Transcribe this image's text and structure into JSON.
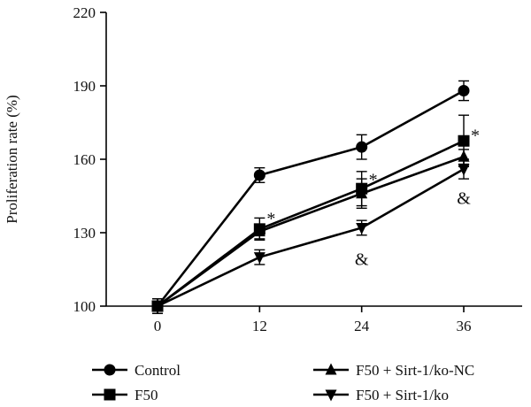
{
  "chart_data": {
    "type": "line",
    "title": "",
    "xlabel": "",
    "ylabel": "Proliferation rate (%)",
    "x": [
      0,
      12,
      24,
      36
    ],
    "x_ticks": [
      "0",
      "12",
      "24",
      "36"
    ],
    "ylim": [
      100,
      220
    ],
    "y_ticks": [
      "100",
      "130",
      "160",
      "190",
      "220"
    ],
    "grid": false,
    "legend_position": "bottom",
    "series": [
      {
        "name": "Control",
        "marker": "circle",
        "values": [
          100,
          153.5,
          165,
          188
        ],
        "errors": [
          3,
          3,
          5,
          4
        ]
      },
      {
        "name": "F50",
        "marker": "square",
        "values": [
          100,
          131.5,
          148,
          167.5
        ],
        "errors": [
          3,
          4.5,
          7,
          10.5
        ]
      },
      {
        "name": "F50 + Sirt-1/ko-NC",
        "marker": "triangle-up",
        "values": [
          100,
          130.5,
          146,
          161
        ],
        "errors": [
          3,
          3,
          6,
          3
        ]
      },
      {
        "name": "F50 + Sirt-1/ko",
        "marker": "triangle-down",
        "values": [
          100,
          120,
          132,
          156
        ],
        "errors": [
          3,
          3,
          3,
          4
        ]
      }
    ],
    "annotations": [
      {
        "text": "*",
        "x": 12,
        "y": 137
      },
      {
        "text": "*",
        "x": 24,
        "y": 153
      },
      {
        "text": "*",
        "x": 36,
        "y": 171
      },
      {
        "text": "&",
        "x": 24,
        "y": 119
      },
      {
        "text": "&",
        "x": 36,
        "y": 144
      }
    ]
  }
}
